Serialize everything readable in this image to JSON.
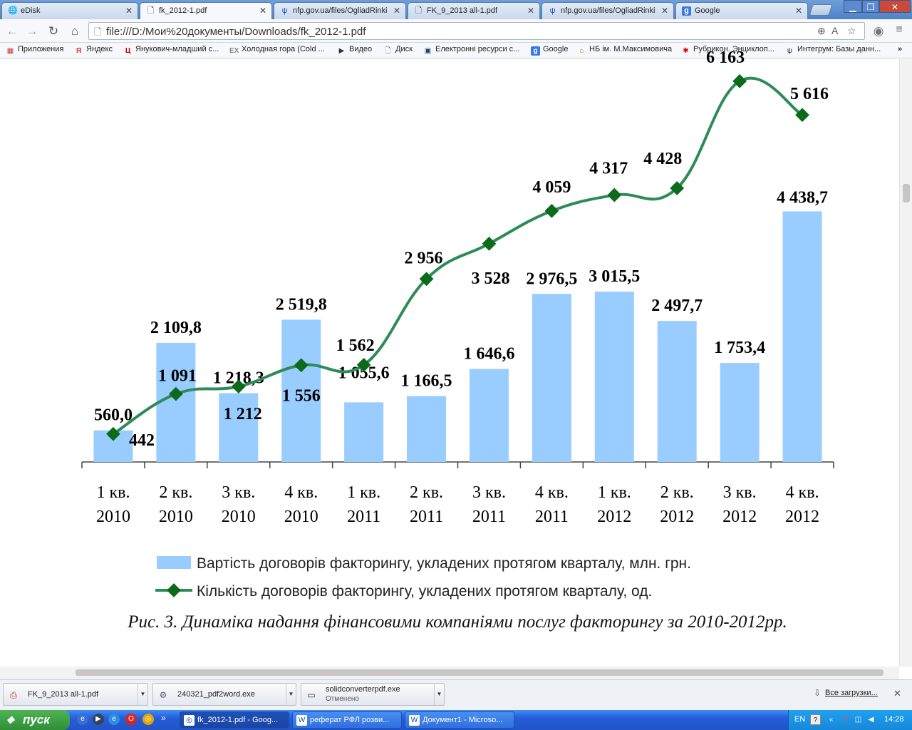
{
  "tabs": [
    {
      "title": "eDisk",
      "icon": "globe-icon",
      "active": false
    },
    {
      "title": "fk_2012-1.pdf",
      "icon": "document-icon",
      "active": true
    },
    {
      "title": "nfp.gov.ua/files/OgliadRinki",
      "icon": "trident-icon",
      "active": false
    },
    {
      "title": "FK_9_2013 all-1.pdf",
      "icon": "document-icon",
      "active": false
    },
    {
      "title": "nfp.gov.ua/files/OgliadRinki",
      "icon": "trident-icon",
      "active": false
    },
    {
      "title": "Google",
      "icon": "google-icon",
      "active": false
    }
  ],
  "address": {
    "url": "file:///D:/Мои%20документы/Downloads/fk_2012-1.pdf"
  },
  "bookmarks": [
    {
      "label": "Приложения",
      "icon": "apps-grid-icon"
    },
    {
      "label": "Яндекс",
      "icon": "yandex-icon"
    },
    {
      "label": "Янукович-младший с...",
      "icon": "news-icon"
    },
    {
      "label": "Холодная гора (Cold ...",
      "icon": "ex-icon"
    },
    {
      "label": "Видео",
      "icon": "play-icon"
    },
    {
      "label": "Диск",
      "icon": "page-icon"
    },
    {
      "label": "Електронні ресурси с...",
      "icon": "library-icon"
    },
    {
      "label": "Google",
      "icon": "google-icon"
    },
    {
      "label": "НБ ім. М.Максимовича",
      "icon": "library-logo-icon"
    },
    {
      "label": "Рубрикон. Энциклоп...",
      "icon": "rubricon-icon"
    },
    {
      "label": "Интегрум: Базы данн...",
      "icon": "integrum-icon"
    }
  ],
  "chart_data": {
    "type": "bar+line",
    "categories": [
      [
        "1 кв.",
        "2010"
      ],
      [
        "2 кв.",
        "2010"
      ],
      [
        "3 кв.",
        "2010"
      ],
      [
        "4 кв.",
        "2010"
      ],
      [
        "1 кв.",
        "2011"
      ],
      [
        "2 кв.",
        "2011"
      ],
      [
        "3 кв.",
        "2011"
      ],
      [
        "4 кв.",
        "2011"
      ],
      [
        "1 кв.",
        "2012"
      ],
      [
        "2 кв.",
        "2012"
      ],
      [
        "3 кв.",
        "2012"
      ],
      [
        "4 кв.",
        "2012"
      ]
    ],
    "series": [
      {
        "name": "Вартість договорів факторингу, укладених протягом кварталу, млн. грн.",
        "type": "bar",
        "color": "#99ccff",
        "values": [
          560.0,
          2109.8,
          1218.3,
          2519.8,
          1055.6,
          1166.5,
          1646.6,
          2976.5,
          3015.5,
          2497.7,
          1753.4,
          4438.7
        ],
        "labels": [
          "560,0",
          "2 109,8",
          "1 218,3",
          "2 519,8",
          "1 055,6",
          "1 166,5",
          "1 646,6",
          "2 976,5",
          "3 015,5",
          "2 497,7",
          "1 753,4",
          "4 438,7"
        ]
      },
      {
        "name": "Кількість договорів факторингу, укладених протягом кварталу, од.",
        "type": "line",
        "color": "#2e8b57",
        "marker_color": "#0b6b1a",
        "values": [
          442,
          1091,
          1212,
          1556,
          1562,
          2956,
          3528,
          4059,
          4317,
          4428,
          6163,
          5616
        ],
        "labels": [
          "442",
          "1 091",
          "1 212",
          "1 556",
          "1 562",
          "2 956",
          "3 528",
          "4 059",
          "4 317",
          "4 428",
          "6 163",
          "5 616"
        ]
      }
    ]
  },
  "caption": "Рис. 3. Динаміка надання фінансовими компаніями послуг факторингу за 2010-2012рр.",
  "downloads": [
    {
      "name": "FK_9_2013 all-1.pdf",
      "status": "",
      "icon": "pdf-icon"
    },
    {
      "name": "240321_pdf2word.exe",
      "status": "",
      "icon": "installer-icon"
    },
    {
      "name": "solidconverterpdf.exe",
      "status": "Отменено",
      "icon": "window-icon"
    }
  ],
  "all_downloads_label": "Все загрузки...",
  "taskbar": {
    "start_label": "пуск",
    "tasks": [
      {
        "label": "fk_2012-1.pdf - Goog...",
        "icon": "chrome-icon",
        "active": true
      },
      {
        "label": "реферат РФЛ розви...",
        "icon": "word-icon",
        "active": false
      },
      {
        "label": "Документ1 - Microso...",
        "icon": "word-icon",
        "active": false
      }
    ],
    "language": "EN",
    "clock": "14:28"
  }
}
